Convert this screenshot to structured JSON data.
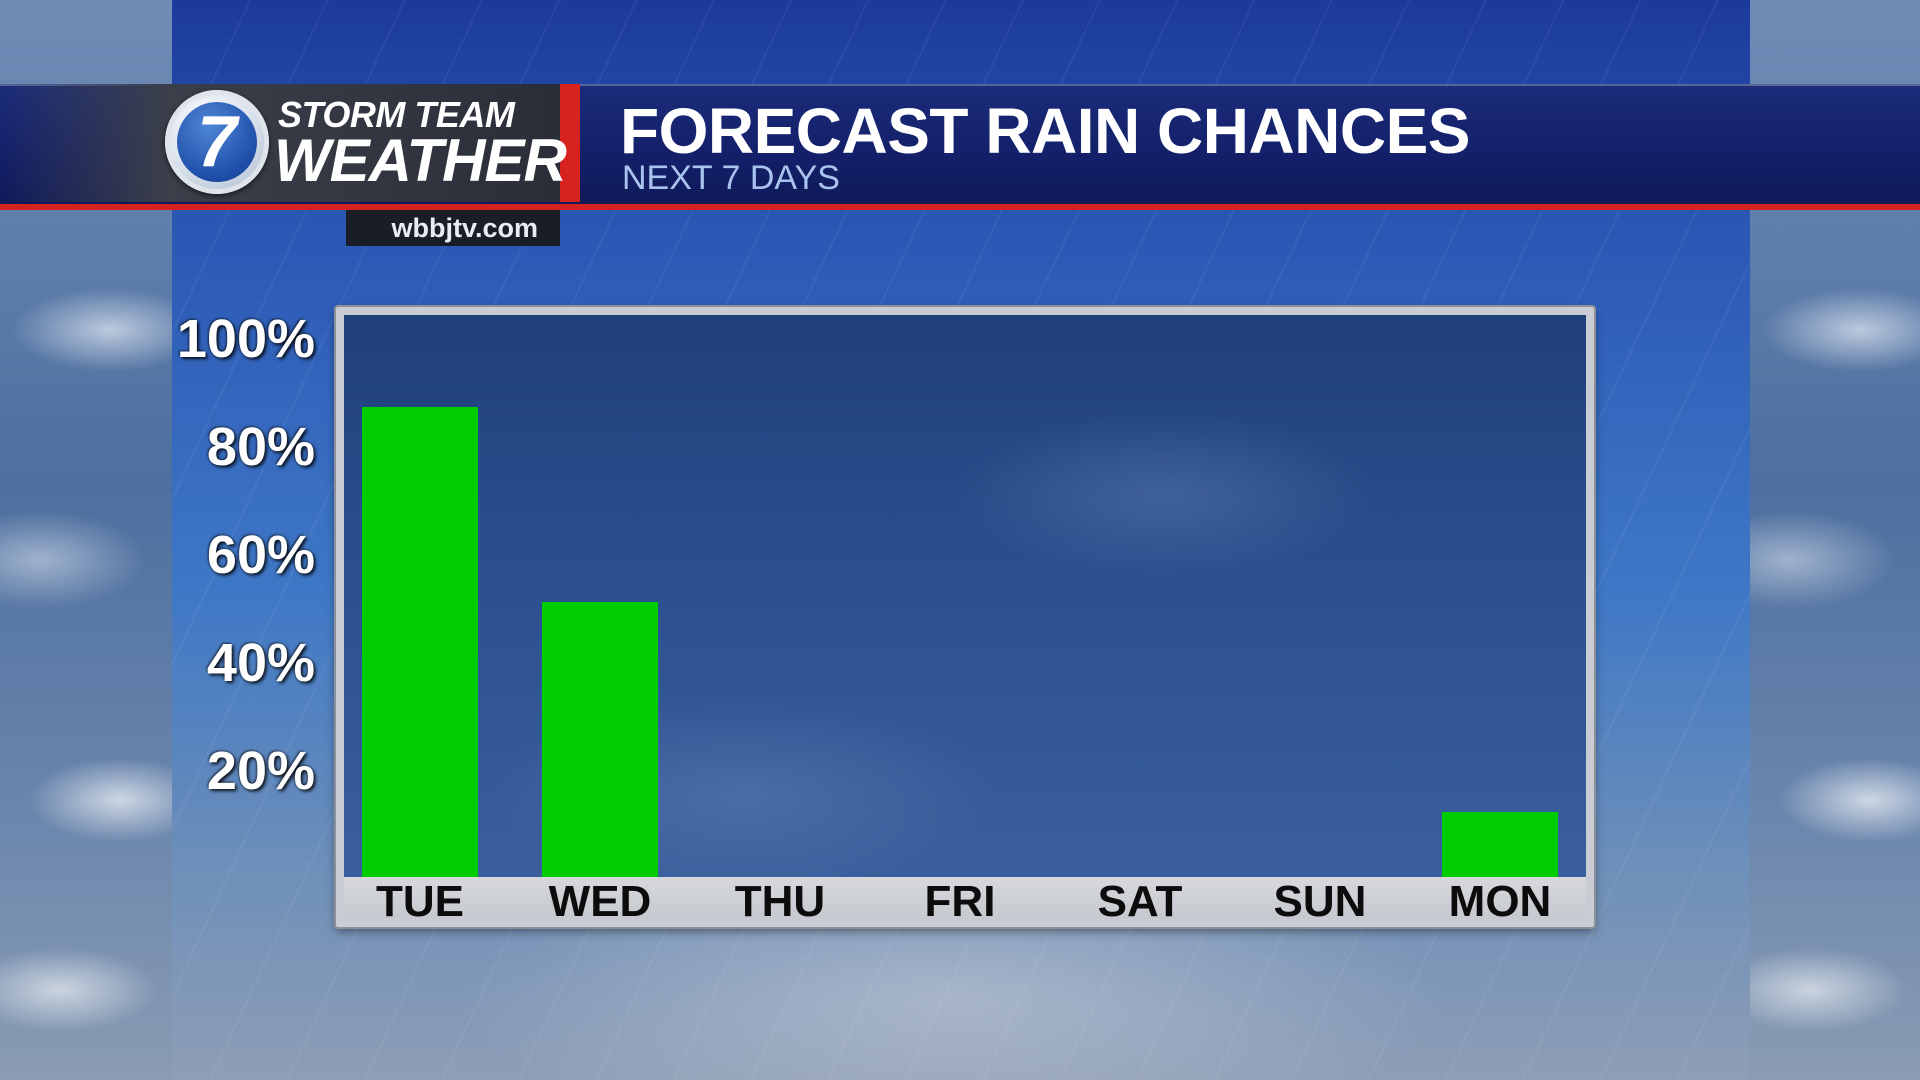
{
  "header": {
    "brand_top": "STORM TEAM",
    "brand_bottom": "WEATHER",
    "logo_number": "7",
    "website": "wbbjtv.com",
    "title": "FORECAST RAIN CHANCES",
    "subtitle": "NEXT 7 DAYS"
  },
  "colors": {
    "bar": "#00cc00",
    "accent_red": "#d7231f",
    "header_blue": "#14206a"
  },
  "chart_data": {
    "type": "bar",
    "categories": [
      "TUE",
      "WED",
      "THU",
      "FRI",
      "SAT",
      "SUN",
      "MON"
    ],
    "values": [
      87,
      51,
      0,
      0,
      0,
      0,
      12
    ],
    "ytick_labels": [
      "100%",
      "80%",
      "60%",
      "40%",
      "20%"
    ],
    "yticks": [
      100,
      80,
      60,
      40,
      20
    ],
    "ylim": [
      0,
      100
    ],
    "title": "FORECAST RAIN CHANCES",
    "subtitle": "NEXT 7 DAYS",
    "grid": false,
    "legend": "none"
  }
}
